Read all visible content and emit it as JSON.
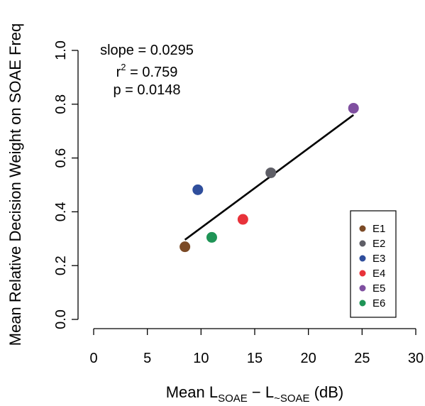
{
  "chart_data": {
    "type": "scatter",
    "xlabel_parts": {
      "prefix": "Mean L",
      "sub1": "SOAE",
      "mid": " − L",
      "sub2": "~SOAE",
      "suffix": " (dB)"
    },
    "ylabel": "Mean Relative Decision Weight on SOAE Freq",
    "xlim": [
      0,
      30
    ],
    "ylim": [
      0,
      1
    ],
    "x_ticks": [
      0,
      5,
      10,
      15,
      20,
      25,
      30
    ],
    "x_tick_labels": [
      "0",
      "5",
      "10",
      "15",
      "20",
      "25",
      "30"
    ],
    "y_ticks": [
      0,
      0.2,
      0.4,
      0.6,
      0.8,
      1.0
    ],
    "y_tick_labels": [
      "0.0",
      "0.2",
      "0.4",
      "0.6",
      "0.8",
      "1.0"
    ],
    "points": [
      {
        "name": "E1",
        "x": 8.5,
        "y": 0.27,
        "color": "#7b4a26"
      },
      {
        "name": "E2",
        "x": 16.5,
        "y": 0.545,
        "color": "#5e5e66"
      },
      {
        "name": "E3",
        "x": 9.7,
        "y": 0.482,
        "color": "#2f4e9c"
      },
      {
        "name": "E4",
        "x": 13.9,
        "y": 0.372,
        "color": "#e8323a"
      },
      {
        "name": "E5",
        "x": 24.2,
        "y": 0.785,
        "color": "#7f4fa0"
      },
      {
        "name": "E6",
        "x": 11.0,
        "y": 0.305,
        "color": "#1f9456"
      }
    ],
    "fit_line": {
      "x": [
        8.5,
        24.2
      ],
      "y": [
        0.296,
        0.76
      ]
    },
    "stats": {
      "slope": "slope = 0.0295",
      "r2_base": "r",
      "r2_exp": "2",
      "r2_value": " = 0.759",
      "p": "p = 0.0148"
    },
    "legend": {
      "placement": "bottom-right",
      "entries": [
        "E1",
        "E2",
        "E3",
        "E4",
        "E5",
        "E6"
      ]
    },
    "grid": false
  }
}
